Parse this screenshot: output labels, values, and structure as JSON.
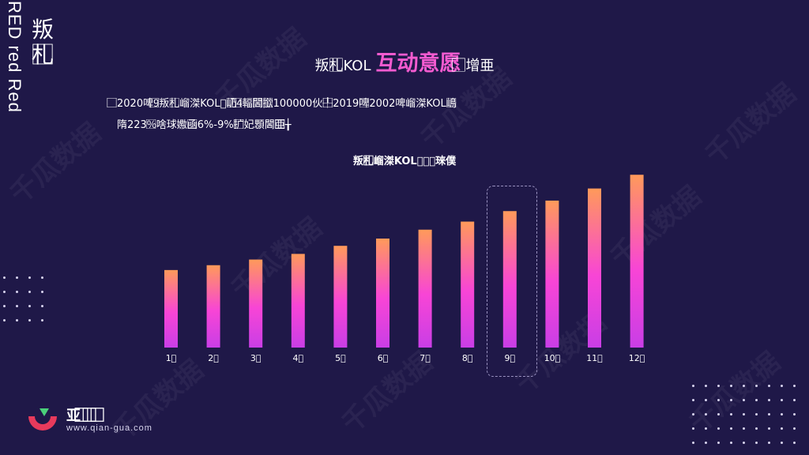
{
  "side": {
    "vertical_en": "RED red Red",
    "vertical_cn": "叛札⃞"
  },
  "title": {
    "prefix": "叛札⃞KOL",
    "highlight": "互动意愿",
    "suffix": "⃞⃞增亜"
  },
  "description": {
    "line1": "⃞⃞2020啤9⃞⃞叛札⃞嵧滐KOL⃞屷⃞⃞⃞4⃞⃞輻閪⃞撳⃞100000伙╀⃞⃞2019啤⃞2002啤嵧滐KOL嶋⃞",
    "line2": "隋223%⃞啥球嫐凾⃞6%-9%扩⃞⃞⃞妃顋閪亜⃞⃞⃞╁"
  },
  "logo": {
    "name": "亚 ⃞ ⃞ ⃞",
    "url": "www.qian-gua.com"
  },
  "watermark": "千瓜数据",
  "colors": {
    "background": "#1f1848",
    "bar_top": "#ff9a5a",
    "bar_mid": "#f845d6",
    "bar_bottom": "#c93ee6",
    "accent": "#f45bd0"
  },
  "chart_data": {
    "type": "bar",
    "title": "叛札⃞嵧滐KOL⃞⃞⃞琜僕",
    "categories": [
      "1⃞",
      "2⃞",
      "3⃞",
      "4⃞",
      "5⃞",
      "6⃞",
      "7⃞",
      "8⃞",
      "9⃞",
      "10⃞",
      "11⃞",
      "12⃞"
    ],
    "values": [
      96,
      102,
      109,
      116,
      126,
      135,
      146,
      156,
      169,
      182,
      197,
      214
    ],
    "highlighted_category": "9⃞",
    "ylim": [
      0,
      225
    ],
    "grid": false,
    "legend": "none"
  }
}
